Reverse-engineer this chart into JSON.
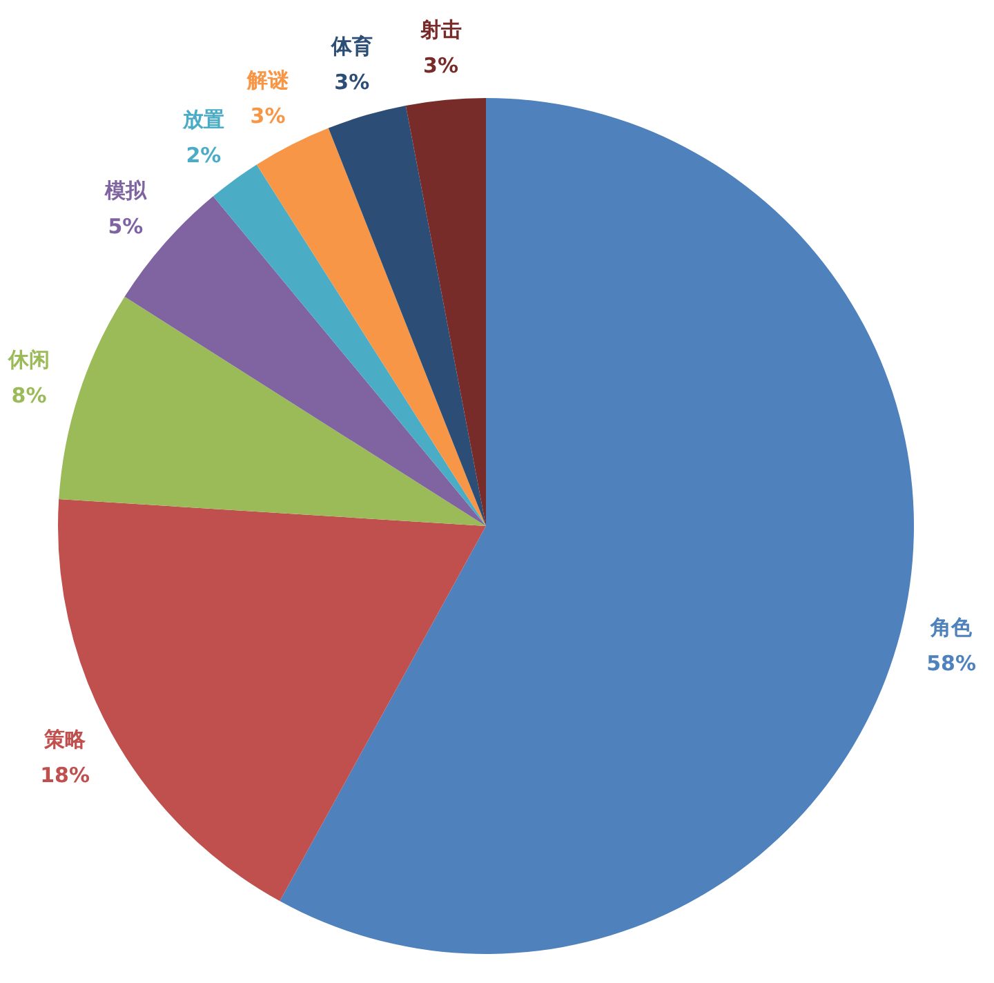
{
  "chart_data": {
    "type": "pie",
    "categories": [
      "角色",
      "策略",
      "休闲",
      "模拟",
      "放置",
      "解谜",
      "体育",
      "射击"
    ],
    "values": [
      58,
      18,
      8,
      5,
      2,
      3,
      3,
      3
    ],
    "value_labels": [
      "58%",
      "18%",
      "8%",
      "5%",
      "2%",
      "3%",
      "3%",
      "3%"
    ],
    "colors": [
      "#4f81bd",
      "#c0504d",
      "#9bbb59",
      "#8064a2",
      "#4bacc6",
      "#f79646",
      "#2c4d75",
      "#772c2a"
    ],
    "legend": false
  }
}
